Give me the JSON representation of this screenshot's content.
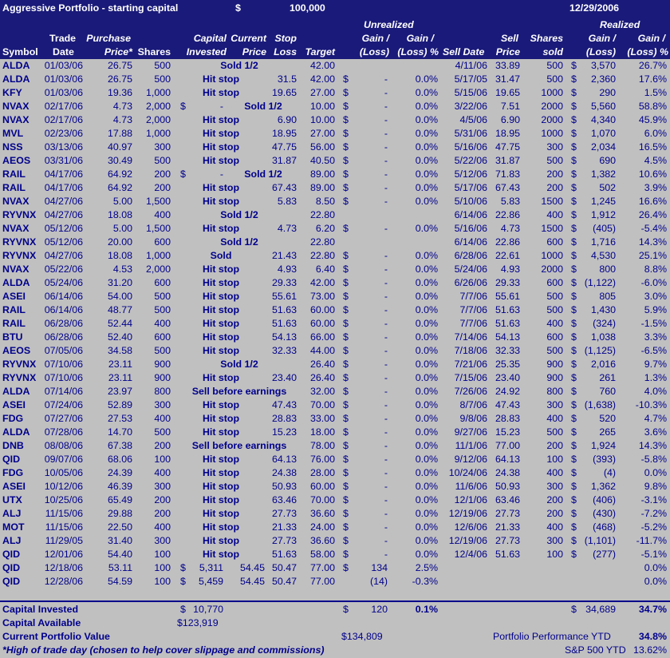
{
  "title": {
    "name": "Aggressive Portfolio - starting capital",
    "dollar": "$",
    "amount": "100,000",
    "date": "12/29/2006"
  },
  "headers": {
    "unrealized": "Unrealized",
    "realized": "Realized",
    "symbol": "Symbol",
    "trade_date": [
      "Trade",
      "Date"
    ],
    "purchase_price": [
      "Purchase",
      "Price*"
    ],
    "shares": "Shares",
    "capital_invested": [
      "Capital",
      "Invested"
    ],
    "current_price": [
      "Current",
      "Price"
    ],
    "stop_loss": [
      "Stop",
      "Loss"
    ],
    "target": "Target",
    "unreal_gain": [
      "Gain /",
      "(Loss)"
    ],
    "unreal_gain_pct": [
      "Gain /",
      "(Loss) %"
    ],
    "sell_date": "Sell Date",
    "sell_price": [
      "Sell",
      "Price"
    ],
    "shares_sold": [
      "Shares",
      "sold"
    ],
    "real_gain": [
      "Gain /",
      "(Loss)"
    ],
    "real_gain_pct": [
      "Gain /",
      "(Loss) %"
    ]
  },
  "rows": [
    {
      "sym": "ALDA",
      "date": "01/03/06",
      "pp": "26.75",
      "sh": "500",
      "capd": "",
      "cap": "",
      "status": "Sold 1/2",
      "cur": "",
      "stop": "",
      "tgt": "42.00",
      "ud": "",
      "ug": "",
      "up": "",
      "sd": "4/11/06",
      "sp": "33.89",
      "ss": "500",
      "rd": "$",
      "rg": "3,570",
      "rp": "26.7%"
    },
    {
      "sym": "ALDA",
      "date": "01/03/06",
      "pp": "26.75",
      "sh": "500",
      "capd": "",
      "cap": "",
      "status": "Hit stop",
      "cur": "",
      "stop": "31.5",
      "tgt": "42.00",
      "ud": "$",
      "ug": "-",
      "up": "0.0%",
      "sd": "5/17/05",
      "sp": "31.47",
      "ss": "500",
      "rd": "$",
      "rg": "2,360",
      "rp": "17.6%"
    },
    {
      "sym": "KFY",
      "date": "01/03/06",
      "pp": "19.36",
      "sh": "1,000",
      "capd": "",
      "cap": "",
      "status": "Hit stop",
      "cur": "",
      "stop": "19.65",
      "tgt": "27.00",
      "ud": "$",
      "ug": "-",
      "up": "0.0%",
      "sd": "5/15/06",
      "sp": "19.65",
      "ss": "1000",
      "rd": "$",
      "rg": "290",
      "rp": "1.5%"
    },
    {
      "sym": "NVAX",
      "date": "02/17/06",
      "pp": "4.73",
      "sh": "2,000",
      "capd": "$",
      "cap": "-",
      "status": "Sold 1/2",
      "cur": "",
      "stop": "",
      "tgt": "10.00",
      "ud": "$",
      "ug": "-",
      "up": "0.0%",
      "sd": "3/22/06",
      "sp": "7.51",
      "ss": "2000",
      "rd": "$",
      "rg": "5,560",
      "rp": "58.8%"
    },
    {
      "sym": "NVAX",
      "date": "02/17/06",
      "pp": "4.73",
      "sh": "2,000",
      "capd": "",
      "cap": "",
      "status": "Hit stop",
      "cur": "",
      "stop": "6.90",
      "tgt": "10.00",
      "ud": "$",
      "ug": "-",
      "up": "0.0%",
      "sd": "4/5/06",
      "sp": "6.90",
      "ss": "2000",
      "rd": "$",
      "rg": "4,340",
      "rp": "45.9%"
    },
    {
      "sym": "MVL",
      "date": "02/23/06",
      "pp": "17.88",
      "sh": "1,000",
      "capd": "",
      "cap": "",
      "status": "Hit stop",
      "cur": "",
      "stop": "18.95",
      "tgt": "27.00",
      "ud": "$",
      "ug": "-",
      "up": "0.0%",
      "sd": "5/31/06",
      "sp": "18.95",
      "ss": "1000",
      "rd": "$",
      "rg": "1,070",
      "rp": "6.0%"
    },
    {
      "sym": "NSS",
      "date": "03/13/06",
      "pp": "40.97",
      "sh": "300",
      "capd": "",
      "cap": "",
      "status": "Hit stop",
      "cur": "",
      "stop": "47.75",
      "tgt": "56.00",
      "ud": "$",
      "ug": "-",
      "up": "0.0%",
      "sd": "5/16/06",
      "sp": "47.75",
      "ss": "300",
      "rd": "$",
      "rg": "2,034",
      "rp": "16.5%"
    },
    {
      "sym": "AEOS",
      "date": "03/31/06",
      "pp": "30.49",
      "sh": "500",
      "capd": "",
      "cap": "",
      "status": "Hit stop",
      "cur": "",
      "stop": "31.87",
      "tgt": "40.50",
      "ud": "$",
      "ug": "-",
      "up": "0.0%",
      "sd": "5/22/06",
      "sp": "31.87",
      "ss": "500",
      "rd": "$",
      "rg": "690",
      "rp": "4.5%"
    },
    {
      "sym": "RAIL",
      "date": "04/17/06",
      "pp": "64.92",
      "sh": "200",
      "capd": "$",
      "cap": "-",
      "status": "Sold 1/2",
      "cur": "",
      "stop": "",
      "tgt": "89.00",
      "ud": "$",
      "ug": "-",
      "up": "0.0%",
      "sd": "5/12/06",
      "sp": "71.83",
      "ss": "200",
      "rd": "$",
      "rg": "1,382",
      "rp": "10.6%"
    },
    {
      "sym": "RAIL",
      "date": "04/17/06",
      "pp": "64.92",
      "sh": "200",
      "capd": "",
      "cap": "",
      "status": "Hit stop",
      "cur": "",
      "stop": "67.43",
      "tgt": "89.00",
      "ud": "$",
      "ug": "-",
      "up": "0.0%",
      "sd": "5/17/06",
      "sp": "67.43",
      "ss": "200",
      "rd": "$",
      "rg": "502",
      "rp": "3.9%"
    },
    {
      "sym": "NVAX",
      "date": "04/27/06",
      "pp": "5.00",
      "sh": "1,500",
      "capd": "",
      "cap": "",
      "status": "Hit stop",
      "cur": "",
      "stop": "5.83",
      "tgt": "8.50",
      "ud": "$",
      "ug": "-",
      "up": "0.0%",
      "sd": "5/10/06",
      "sp": "5.83",
      "ss": "1500",
      "rd": "$",
      "rg": "1,245",
      "rp": "16.6%"
    },
    {
      "sym": "RYVNX",
      "date": "04/27/06",
      "pp": "18.08",
      "sh": "400",
      "capd": "",
      "cap": "",
      "status": "Sold 1/2",
      "cur": "",
      "stop": "",
      "tgt": "22.80",
      "ud": "",
      "ug": "",
      "up": "",
      "sd": "6/14/06",
      "sp": "22.86",
      "ss": "400",
      "rd": "$",
      "rg": "1,912",
      "rp": "26.4%"
    },
    {
      "sym": "NVAX",
      "date": "05/12/06",
      "pp": "5.00",
      "sh": "1,500",
      "capd": "",
      "cap": "",
      "status": "Hit stop",
      "cur": "",
      "stop": "4.73",
      "tgt": "6.20",
      "ud": "$",
      "ug": "-",
      "up": "0.0%",
      "sd": "5/16/06",
      "sp": "4.73",
      "ss": "1500",
      "rd": "$",
      "rg": "(405)",
      "rp": "-5.4%"
    },
    {
      "sym": "RYVNX",
      "date": "05/12/06",
      "pp": "20.00",
      "sh": "600",
      "capd": "",
      "cap": "",
      "status": "Sold 1/2",
      "cur": "",
      "stop": "",
      "tgt": "22.80",
      "ud": "",
      "ug": "",
      "up": "",
      "sd": "6/14/06",
      "sp": "22.86",
      "ss": "600",
      "rd": "$",
      "rg": "1,716",
      "rp": "14.3%"
    },
    {
      "sym": "RYVNX",
      "date": "04/27/06",
      "pp": "18.08",
      "sh": "1,000",
      "capd": "",
      "cap": "",
      "status": "Sold",
      "cur": "",
      "stop": "21.43",
      "tgt": "22.80",
      "ud": "$",
      "ug": "-",
      "up": "0.0%",
      "sd": "6/28/06",
      "sp": "22.61",
      "ss": "1000",
      "rd": "$",
      "rg": "4,530",
      "rp": "25.1%"
    },
    {
      "sym": "NVAX",
      "date": "05/22/06",
      "pp": "4.53",
      "sh": "2,000",
      "capd": "",
      "cap": "",
      "status": "Hit stop",
      "cur": "",
      "stop": "4.93",
      "tgt": "6.40",
      "ud": "$",
      "ug": "-",
      "up": "0.0%",
      "sd": "5/24/06",
      "sp": "4.93",
      "ss": "2000",
      "rd": "$",
      "rg": "800",
      "rp": "8.8%"
    },
    {
      "sym": "ALDA",
      "date": "05/24/06",
      "pp": "31.20",
      "sh": "600",
      "capd": "",
      "cap": "",
      "status": "Hit stop",
      "cur": "",
      "stop": "29.33",
      "tgt": "42.00",
      "ud": "$",
      "ug": "-",
      "up": "0.0%",
      "sd": "6/26/06",
      "sp": "29.33",
      "ss": "600",
      "rd": "$",
      "rg": "(1,122)",
      "rp": "-6.0%"
    },
    {
      "sym": "ASEI",
      "date": "06/14/06",
      "pp": "54.00",
      "sh": "500",
      "capd": "",
      "cap": "",
      "status": "Hit stop",
      "cur": "",
      "stop": "55.61",
      "tgt": "73.00",
      "ud": "$",
      "ug": "-",
      "up": "0.0%",
      "sd": "7/7/06",
      "sp": "55.61",
      "ss": "500",
      "rd": "$",
      "rg": "805",
      "rp": "3.0%"
    },
    {
      "sym": "RAIL",
      "date": "06/14/06",
      "pp": "48.77",
      "sh": "500",
      "capd": "",
      "cap": "",
      "status": "Hit stop",
      "cur": "",
      "stop": "51.63",
      "tgt": "60.00",
      "ud": "$",
      "ug": "-",
      "up": "0.0%",
      "sd": "7/7/06",
      "sp": "51.63",
      "ss": "500",
      "rd": "$",
      "rg": "1,430",
      "rp": "5.9%"
    },
    {
      "sym": "RAIL",
      "date": "06/28/06",
      "pp": "52.44",
      "sh": "400",
      "capd": "",
      "cap": "",
      "status": "Hit stop",
      "cur": "",
      "stop": "51.63",
      "tgt": "60.00",
      "ud": "$",
      "ug": "-",
      "up": "0.0%",
      "sd": "7/7/06",
      "sp": "51.63",
      "ss": "400",
      "rd": "$",
      "rg": "(324)",
      "rp": "-1.5%"
    },
    {
      "sym": "BTU",
      "date": "06/28/06",
      "pp": "52.40",
      "sh": "600",
      "capd": "",
      "cap": "",
      "status": "Hit stop",
      "cur": "",
      "stop": "54.13",
      "tgt": "66.00",
      "ud": "$",
      "ug": "-",
      "up": "0.0%",
      "sd": "7/14/06",
      "sp": "54.13",
      "ss": "600",
      "rd": "$",
      "rg": "1,038",
      "rp": "3.3%"
    },
    {
      "sym": "AEOS",
      "date": "07/05/06",
      "pp": "34.58",
      "sh": "500",
      "capd": "",
      "cap": "",
      "status": "Hit stop",
      "cur": "",
      "stop": "32.33",
      "tgt": "44.00",
      "ud": "$",
      "ug": "-",
      "up": "0.0%",
      "sd": "7/18/06",
      "sp": "32.33",
      "ss": "500",
      "rd": "$",
      "rg": "(1,125)",
      "rp": "-6.5%"
    },
    {
      "sym": "RYVNX",
      "date": "07/10/06",
      "pp": "23.11",
      "sh": "900",
      "capd": "",
      "cap": "",
      "status": "Sold 1/2",
      "cur": "",
      "stop": "",
      "tgt": "26.40",
      "ud": "$",
      "ug": "-",
      "up": "0.0%",
      "sd": "7/21/06",
      "sp": "25.35",
      "ss": "900",
      "rd": "$",
      "rg": "2,016",
      "rp": "9.7%"
    },
    {
      "sym": "RYVNX",
      "date": "07/10/06",
      "pp": "23.11",
      "sh": "900",
      "capd": "",
      "cap": "",
      "status": "Hit stop",
      "cur": "",
      "stop": "23.40",
      "tgt": "26.40",
      "ud": "$",
      "ug": "-",
      "up": "0.0%",
      "sd": "7/15/06",
      "sp": "23.40",
      "ss": "900",
      "rd": "$",
      "rg": "261",
      "rp": "1.3%"
    },
    {
      "sym": "ALDA",
      "date": "07/14/06",
      "pp": "23.97",
      "sh": "800",
      "capd": "",
      "cap": "",
      "status": "Sell before earnings",
      "cur": "",
      "stop": "",
      "tgt": "32.00",
      "ud": "$",
      "ug": "-",
      "up": "0.0%",
      "sd": "7/26/06",
      "sp": "24.92",
      "ss": "800",
      "rd": "$",
      "rg": "760",
      "rp": "4.0%"
    },
    {
      "sym": "ASEI",
      "date": "07/24/06",
      "pp": "52.89",
      "sh": "300",
      "capd": "",
      "cap": "",
      "status": "Hit stop",
      "cur": "",
      "stop": "47.43",
      "tgt": "70.00",
      "ud": "$",
      "ug": "-",
      "up": "0.0%",
      "sd": "8/7/06",
      "sp": "47.43",
      "ss": "300",
      "rd": "$",
      "rg": "(1,638)",
      "rp": "-10.3%"
    },
    {
      "sym": "FDG",
      "date": "07/27/06",
      "pp": "27.53",
      "sh": "400",
      "capd": "",
      "cap": "",
      "status": "Hit stop",
      "cur": "",
      "stop": "28.83",
      "tgt": "33.00",
      "ud": "$",
      "ug": "-",
      "up": "0.0%",
      "sd": "9/8/06",
      "sp": "28.83",
      "ss": "400",
      "rd": "$",
      "rg": "520",
      "rp": "4.7%"
    },
    {
      "sym": "ALDA",
      "date": "07/28/06",
      "pp": "14.70",
      "sh": "500",
      "capd": "",
      "cap": "",
      "status": "Hit stop",
      "cur": "",
      "stop": "15.23",
      "tgt": "18.00",
      "ud": "$",
      "ug": "-",
      "up": "0.0%",
      "sd": "9/27/06",
      "sp": "15.23",
      "ss": "500",
      "rd": "$",
      "rg": "265",
      "rp": "3.6%"
    },
    {
      "sym": "DNB",
      "date": "08/08/06",
      "pp": "67.38",
      "sh": "200",
      "capd": "",
      "cap": "",
      "status": "Sell before earnings",
      "cur": "",
      "stop": "",
      "tgt": "78.00",
      "ud": "$",
      "ug": "-",
      "up": "0.0%",
      "sd": "11/1/06",
      "sp": "77.00",
      "ss": "200",
      "rd": "$",
      "rg": "1,924",
      "rp": "14.3%"
    },
    {
      "sym": "QID",
      "date": "09/07/06",
      "pp": "68.06",
      "sh": "100",
      "capd": "",
      "cap": "",
      "status": "Hit stop",
      "cur": "",
      "stop": "64.13",
      "tgt": "76.00",
      "ud": "$",
      "ug": "-",
      "up": "0.0%",
      "sd": "9/12/06",
      "sp": "64.13",
      "ss": "100",
      "rd": "$",
      "rg": "(393)",
      "rp": "-5.8%"
    },
    {
      "sym": "FDG",
      "date": "10/05/06",
      "pp": "24.39",
      "sh": "400",
      "capd": "",
      "cap": "",
      "status": "Hit stop",
      "cur": "",
      "stop": "24.38",
      "tgt": "28.00",
      "ud": "$",
      "ug": "-",
      "up": "0.0%",
      "sd": "10/24/06",
      "sp": "24.38",
      "ss": "400",
      "rd": "$",
      "rg": "(4)",
      "rp": "0.0%"
    },
    {
      "sym": "ASEI",
      "date": "10/12/06",
      "pp": "46.39",
      "sh": "300",
      "capd": "",
      "cap": "",
      "status": "Hit stop",
      "cur": "",
      "stop": "50.93",
      "tgt": "60.00",
      "ud": "$",
      "ug": "-",
      "up": "0.0%",
      "sd": "11/6/06",
      "sp": "50.93",
      "ss": "300",
      "rd": "$",
      "rg": "1,362",
      "rp": "9.8%"
    },
    {
      "sym": "UTX",
      "date": "10/25/06",
      "pp": "65.49",
      "sh": "200",
      "capd": "",
      "cap": "",
      "status": "Hit stop",
      "cur": "",
      "stop": "63.46",
      "tgt": "70.00",
      "ud": "$",
      "ug": "-",
      "up": "0.0%",
      "sd": "12/1/06",
      "sp": "63.46",
      "ss": "200",
      "rd": "$",
      "rg": "(406)",
      "rp": "-3.1%"
    },
    {
      "sym": "ALJ",
      "date": "11/15/06",
      "pp": "29.88",
      "sh": "200",
      "capd": "",
      "cap": "",
      "status": "Hit stop",
      "cur": "",
      "stop": "27.73",
      "tgt": "36.60",
      "ud": "$",
      "ug": "-",
      "up": "0.0%",
      "sd": "12/19/06",
      "sp": "27.73",
      "ss": "200",
      "rd": "$",
      "rg": "(430)",
      "rp": "-7.2%"
    },
    {
      "sym": "MOT",
      "date": "11/15/06",
      "pp": "22.50",
      "sh": "400",
      "capd": "",
      "cap": "",
      "status": "Hit stop",
      "cur": "",
      "stop": "21.33",
      "tgt": "24.00",
      "ud": "$",
      "ug": "-",
      "up": "0.0%",
      "sd": "12/6/06",
      "sp": "21.33",
      "ss": "400",
      "rd": "$",
      "rg": "(468)",
      "rp": "-5.2%"
    },
    {
      "sym": "ALJ",
      "date": "11/29/05",
      "pp": "31.40",
      "sh": "300",
      "capd": "",
      "cap": "",
      "status": "Hit stop",
      "cur": "",
      "stop": "27.73",
      "tgt": "36.60",
      "ud": "$",
      "ug": "-",
      "up": "0.0%",
      "sd": "12/19/06",
      "sp": "27.73",
      "ss": "300",
      "rd": "$",
      "rg": "(1,101)",
      "rp": "-11.7%"
    },
    {
      "sym": "QID",
      "date": "12/01/06",
      "pp": "54.40",
      "sh": "100",
      "capd": "",
      "cap": "",
      "status": "Hit stop",
      "cur": "",
      "stop": "51.63",
      "tgt": "58.00",
      "ud": "$",
      "ug": "-",
      "up": "0.0%",
      "sd": "12/4/06",
      "sp": "51.63",
      "ss": "100",
      "rd": "$",
      "rg": "(277)",
      "rp": "-5.1%"
    },
    {
      "sym": "QID",
      "date": "12/18/06",
      "pp": "53.11",
      "sh": "100",
      "capd": "$",
      "cap": "5,311",
      "status": "",
      "cur": "54.45",
      "stop": "50.47",
      "tgt": "77.00",
      "ud": "$",
      "ug": "134",
      "up": "2.5%",
      "sd": "",
      "sp": "",
      "ss": "",
      "rd": "",
      "rg": "",
      "rp": "0.0%"
    },
    {
      "sym": "QID",
      "date": "12/28/06",
      "pp": "54.59",
      "sh": "100",
      "capd": "$",
      "cap": "5,459",
      "status": "",
      "cur": "54.45",
      "stop": "50.47",
      "tgt": "77.00",
      "ud": "",
      "ug": "(14)",
      "up": "-0.3%",
      "sd": "",
      "sp": "",
      "ss": "",
      "rd": "",
      "rg": "",
      "rp": "0.0%"
    }
  ],
  "footer": {
    "cap_invested_label": "Capital Invested",
    "cap_invested_dollar": "$",
    "cap_invested_value": "10,770",
    "unreal_total_dollar": "$",
    "unreal_total": "120",
    "unreal_total_pct": "0.1%",
    "real_total_dollar": "$",
    "real_total": "34,689",
    "real_total_pct": "34.7%",
    "cap_available_label": "Capital Available",
    "cap_available_value": "$123,919",
    "portfolio_value_label": "Current Portfolio Value",
    "portfolio_value": "$134,809",
    "perf_label": "Portfolio Performance YTD",
    "perf_value": "34.8%",
    "note": "*High of trade day (chosen to help cover slippage and commissions)",
    "sp500_label": "S&P 500 YTD",
    "sp500_value": "13.62%"
  }
}
